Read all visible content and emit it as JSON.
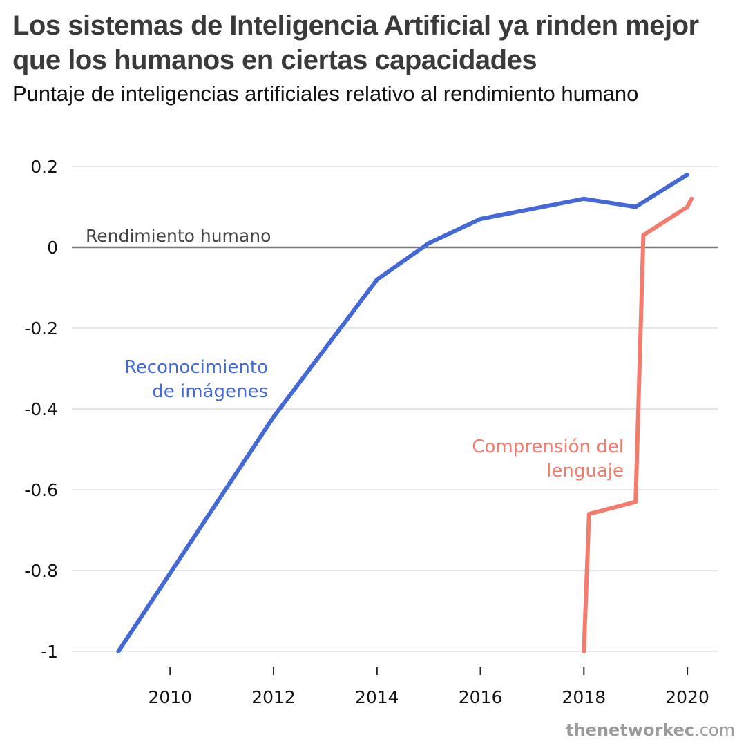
{
  "header": {
    "title": "Los sistemas de Inteligencia Artificial ya rinden mejor que los humanos en ciertas capacidades",
    "subtitle": "Puntaje de inteligencias artificiales relativo al rendimiento humano"
  },
  "source": {
    "domain_bold": "thenetworkec",
    "domain_tld": ".com"
  },
  "chart_data": {
    "type": "line",
    "title": "Los sistemas de Inteligencia Artificial ya rinden mejor que los humanos en ciertas capacidades",
    "subtitle": "Puntaje de inteligencias artificiales relativo al rendimiento humano",
    "xlabel": "",
    "ylabel": "",
    "xlim": [
      2008.1,
      2020.6
    ],
    "ylim": [
      -1,
      0.2
    ],
    "x_ticks": [
      2010,
      2012,
      2014,
      2016,
      2018,
      2020
    ],
    "x_tick_labels": [
      "2010",
      "2012",
      "2014",
      "2016",
      "2018",
      "2020"
    ],
    "y_ticks": [
      0.2,
      0,
      -0.2,
      -0.4,
      -0.6,
      -0.8,
      -1
    ],
    "y_tick_labels": [
      "0.2",
      "0",
      "-0.2",
      "-0.4",
      "-0.6",
      "-0.8",
      "-1"
    ],
    "grid": true,
    "legend": "none",
    "reference_line": {
      "y": 0,
      "label": "Rendimiento humano",
      "color": "#7a7a7a"
    },
    "series": [
      {
        "name": "Reconocimiento de imágenes",
        "label_lines": [
          "Reconocimiento",
          "de imágenes"
        ],
        "color": "#4468d8",
        "points": [
          {
            "x": 2009,
            "y": -1
          },
          {
            "x": 2012,
            "y": -0.42
          },
          {
            "x": 2014,
            "y": -0.08
          },
          {
            "x": 2015,
            "y": 0.01
          },
          {
            "x": 2016,
            "y": 0.07
          },
          {
            "x": 2018,
            "y": 0.12
          },
          {
            "x": 2019,
            "y": 0.1
          },
          {
            "x": 2020,
            "y": 0.18
          }
        ]
      },
      {
        "name": "Comprensión del lenguaje",
        "label_lines": [
          "Comprensión del",
          "lenguaje"
        ],
        "color": "#f47c6e",
        "points": [
          {
            "x": 2018,
            "y": -1
          },
          {
            "x": 2018.1,
            "y": -0.66
          },
          {
            "x": 2019,
            "y": -0.63
          },
          {
            "x": 2019.15,
            "y": 0.03
          },
          {
            "x": 2020,
            "y": 0.1
          },
          {
            "x": 2020.08,
            "y": 0.12
          }
        ]
      }
    ]
  }
}
